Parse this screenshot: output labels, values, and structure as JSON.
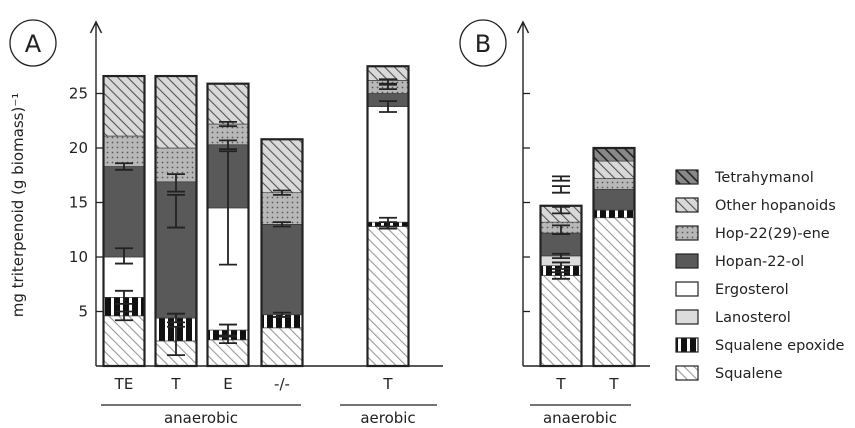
{
  "panels": {
    "a": {
      "letter": "A"
    },
    "b": {
      "letter": "B"
    }
  },
  "ylabel": "mg triterpenoid (g biomass)⁻¹",
  "group_labels": {
    "a_anaerobic": "anaerobic",
    "a_aerobic": "aerobic",
    "b_anaerobic": "anaerobic"
  },
  "legend": [
    {
      "name": "Tetrahymanol",
      "pattern": "darkhatch"
    },
    {
      "name": "Other hopanoids",
      "pattern": "hatchgray"
    },
    {
      "name": "Hop-22(29)-ene",
      "pattern": "dots"
    },
    {
      "name": "Hopan-22-ol",
      "pattern": "dark"
    },
    {
      "name": "Ergosterol",
      "pattern": "white"
    },
    {
      "name": "Lanosterol",
      "pattern": "light"
    },
    {
      "name": "Squalene epoxide",
      "pattern": "blocks"
    },
    {
      "name": "Squalene",
      "pattern": "hatchwhite"
    }
  ],
  "chart_data": [
    {
      "type": "bar",
      "stacked": true,
      "panel": "A",
      "categories": [
        "TE",
        "T",
        "E",
        "-/-",
        "",
        "T"
      ],
      "ylim": [
        0,
        30
      ],
      "yticks": [
        5,
        10,
        15,
        20,
        25
      ],
      "series": [
        {
          "name": "Squalene",
          "values": [
            4.6,
            2.3,
            2.4,
            3.5,
            0,
            12.8
          ]
        },
        {
          "name": "Squalene epoxide",
          "values": [
            1.7,
            2.1,
            0.9,
            1.2,
            0,
            0.4
          ]
        },
        {
          "name": "Lanosterol",
          "values": [
            0,
            0,
            0,
            0,
            0,
            0
          ]
        },
        {
          "name": "Ergosterol",
          "values": [
            3.7,
            0,
            11.2,
            0,
            0,
            10.6
          ]
        },
        {
          "name": "Hopan-22-ol",
          "values": [
            8.3,
            12.5,
            5.8,
            8.3,
            0,
            1.2
          ]
        },
        {
          "name": "Hop-22(29)-ene",
          "values": [
            2.8,
            3.1,
            1.9,
            2.9,
            0,
            1.2
          ]
        },
        {
          "name": "Other hopanoids",
          "values": [
            5.5,
            6.6,
            3.7,
            4.9,
            0,
            1.3
          ]
        },
        {
          "name": "Tetrahymanol",
          "values": [
            0,
            0,
            0,
            0,
            0,
            0
          ]
        }
      ],
      "error_bars": [
        {
          "category": "TE",
          "y": 18.3,
          "err": 0.3
        },
        {
          "category": "TE",
          "y": 10.1,
          "err": 0.7
        },
        {
          "category": "TE",
          "y": 6.3,
          "err": 0.6
        },
        {
          "category": "TE",
          "y": 4.6,
          "err": 0.4
        },
        {
          "category": "T",
          "y": 16.8,
          "err": 0.8
        },
        {
          "category": "T",
          "y": 14.2,
          "err": 1.5
        },
        {
          "category": "T",
          "y": 4.4,
          "err": 0.4
        },
        {
          "category": "T",
          "y": 2.3,
          "err": 1.3
        },
        {
          "category": "E",
          "y": 22.2,
          "err": 0.2
        },
        {
          "category": "E",
          "y": 20.3,
          "err": 0.4
        },
        {
          "category": "E",
          "y": 14.5,
          "err": 5.2
        },
        {
          "category": "E",
          "y": 3.3,
          "err": 0.5
        },
        {
          "category": "E",
          "y": 2.4,
          "err": 0.3
        },
        {
          "category": "-/-",
          "y": 15.9,
          "err": 0.2
        },
        {
          "category": "-/-",
          "y": 13.0,
          "err": 0.2
        },
        {
          "category": "-/-",
          "y": 4.7,
          "err": 0.2
        },
        {
          "category": "T",
          "y": 26.1,
          "err": 0.2
        },
        {
          "category": "T",
          "y": 25.6,
          "err": 0.2
        },
        {
          "category": "T",
          "y": 23.8,
          "err": 0.5
        },
        {
          "category": "T",
          "y": 13.2,
          "err": 0.4
        },
        {
          "category": "T",
          "y": 12.9,
          "err": 0.3
        }
      ]
    },
    {
      "type": "bar",
      "stacked": true,
      "panel": "B",
      "categories": [
        "T",
        "T"
      ],
      "ylim": [
        0,
        30
      ],
      "yticks": [
        5,
        10,
        15,
        20,
        25
      ],
      "series": [
        {
          "name": "Squalene",
          "values": [
            8.3,
            13.6
          ]
        },
        {
          "name": "Squalene epoxide",
          "values": [
            0.9,
            0.7
          ]
        },
        {
          "name": "Lanosterol",
          "values": [
            0.9,
            0
          ]
        },
        {
          "name": "Ergosterol",
          "values": [
            0,
            0
          ]
        },
        {
          "name": "Hopan-22-ol",
          "values": [
            2.1,
            1.9
          ]
        },
        {
          "name": "Hop-22(29)-ene",
          "values": [
            1.0,
            1.0
          ]
        },
        {
          "name": "Other hopanoids",
          "values": [
            1.5,
            1.6
          ]
        },
        {
          "name": "Tetrahymanol",
          "values": [
            0,
            1.2
          ]
        }
      ],
      "error_bars": [
        {
          "category": "T",
          "y": 12.5,
          "err": 0.4
        },
        {
          "category": "T",
          "y": 10.1,
          "err": 0.2
        },
        {
          "category": "T",
          "y": 9.2,
          "err": 0.3
        },
        {
          "category": "T",
          "y": 8.3,
          "err": 0.3
        },
        {
          "category": "T",
          "y": 17.2,
          "err": 0.2
        },
        {
          "category": "T",
          "y": 16.2,
          "err": 0.3
        },
        {
          "category": "T",
          "y": 14.3,
          "err": 0.3
        }
      ]
    }
  ]
}
